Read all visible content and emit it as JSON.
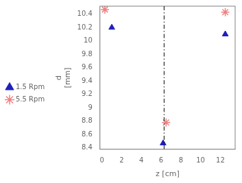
{
  "chart_data": {
    "type": "scatter",
    "xlabel": "z [cm]",
    "ylabel": "d\n[mm]",
    "series": [
      {
        "name": "1.5 Rpm",
        "color": "#1f1fbf",
        "marker": "triangle",
        "x": [
          1.0,
          6.2,
          12.5
        ],
        "values": [
          10.2,
          8.47,
          10.1
        ]
      },
      {
        "name": "5.5 Rpm",
        "color": "#f08080",
        "marker": "star",
        "x": [
          0.3,
          6.5,
          12.5
        ],
        "values": [
          10.47,
          8.78,
          10.43
        ]
      }
    ],
    "vline_x": 6.3,
    "xlim": [
      -0.2,
      13.5
    ],
    "ylim": [
      8.38,
      10.52
    ],
    "xticks": [
      0,
      2,
      4,
      6,
      8,
      10,
      12
    ],
    "yticks": [
      8.4,
      8.6,
      8.8,
      9,
      9.2,
      9.4,
      9.6,
      9.8,
      10,
      10.2,
      10.4
    ],
    "grid": false,
    "legend": "left"
  }
}
